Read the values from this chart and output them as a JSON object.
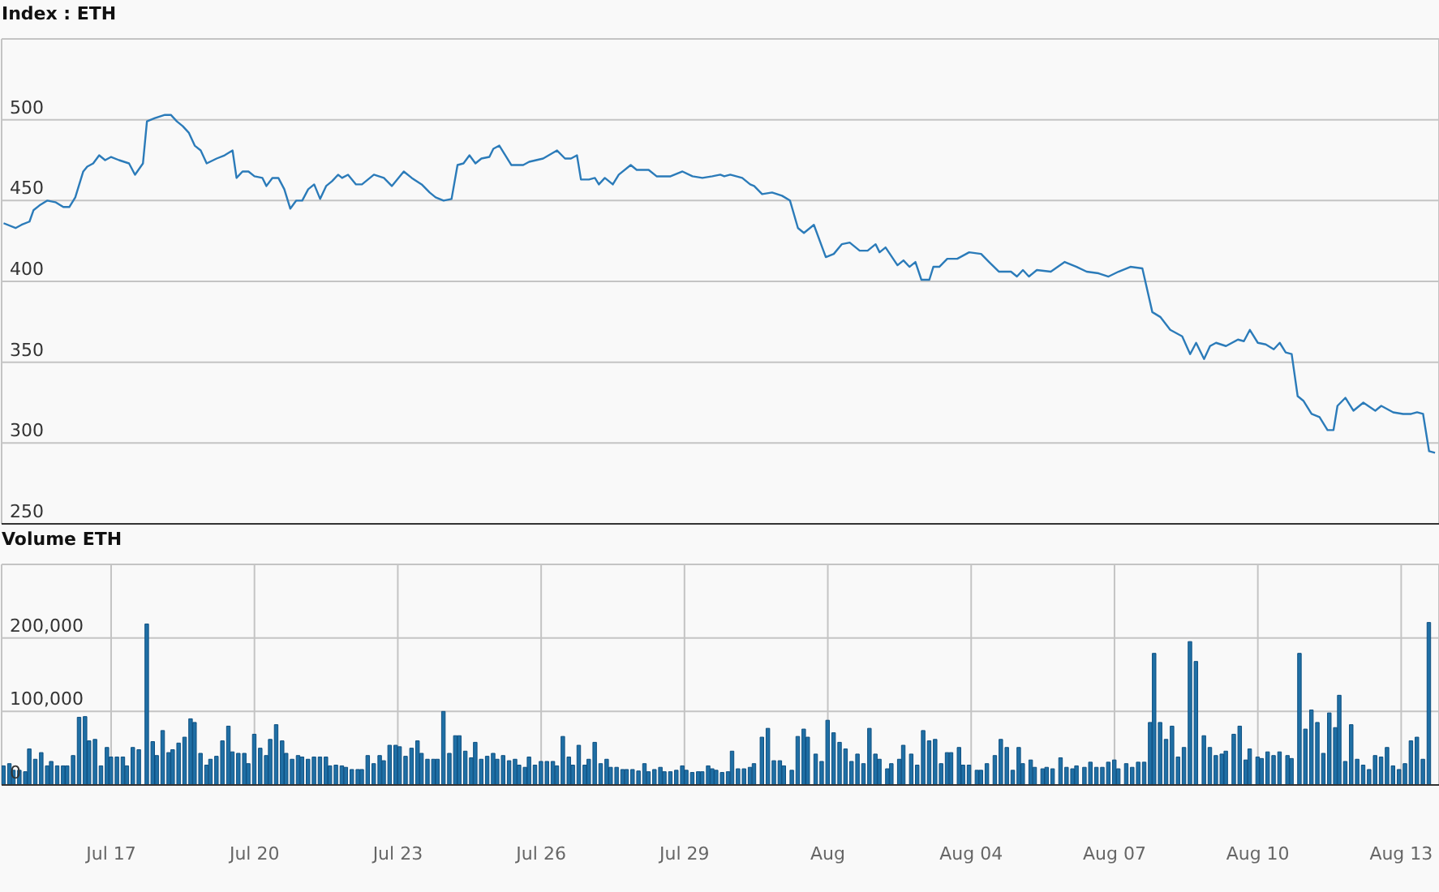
{
  "chart_data": [
    {
      "type": "line",
      "title": "Index : ETH",
      "x": [
        "--07-14T18:00",
        "--07-15T00:00",
        "--07-15T03:00",
        "--07-15T07:00",
        "--07-15T09:00",
        "--07-15T12:00",
        "--07-15T16:00",
        "--07-15T20:00",
        "--07-16T00:00",
        "--07-16T03:00",
        "--07-16T06:00",
        "--07-16T10:00",
        "--07-16T12:00",
        "--07-16T15:00",
        "--07-16T18:00",
        "--07-16T21:00",
        "--07-17T00:00",
        "--07-17T04:00",
        "--07-17T09:00",
        "--07-17T12:00",
        "--07-17T16:00",
        "--07-17T18:00",
        "--07-17T22:00",
        "--07-18T03:00",
        "--07-18T06:00",
        "--07-18T09:00",
        "--07-18T12:00",
        "--07-18T15:00",
        "--07-18T18:00",
        "--07-18T21:00",
        "--07-19T00:00",
        "--07-19T05:00",
        "--07-19T09:00",
        "--07-19T13:00",
        "--07-19T15:00",
        "--07-19T18:00",
        "--07-19T21:00",
        "--07-20T00:00",
        "--07-20T04:00",
        "--07-20T06:00",
        "--07-20T09:00",
        "--07-20T12:00",
        "--07-20T15:00",
        "--07-20T18:00",
        "--07-20T21:00",
        "--07-21T00:00",
        "--07-21T03:00",
        "--07-21T06:00",
        "--07-21T09:00",
        "--07-21T12:00",
        "--07-21T15:00",
        "--07-21T18:00",
        "--07-21T20:00",
        "--07-21T23:00",
        "--07-22T03:00",
        "--07-22T06:00",
        "--07-22T12:00",
        "--07-22T17:00",
        "--07-22T21:00",
        "--07-23T03:00",
        "--07-23T07:00",
        "--07-23T12:00",
        "--07-23T16:00",
        "--07-23T19:00",
        "--07-23T23:00",
        "--07-24T03:00",
        "--07-24T06:00",
        "--07-24T09:00",
        "--07-24T12:00",
        "--07-24T15:00",
        "--07-24T18:00",
        "--07-24T22:00",
        "--07-25T00:00",
        "--07-25T03:00",
        "--07-25T09:00",
        "--07-25T15:00",
        "--07-25T18:00",
        "--07-26T01:00",
        "--07-26T08:00",
        "--07-26T12:00",
        "--07-26T15:00",
        "--07-26T18:00",
        "--07-26T20:00",
        "--07-27T00:00",
        "--07-27T03:00",
        "--07-27T05:00",
        "--07-27T08:00",
        "--07-27T12:00",
        "--07-27T15:00",
        "--07-27T21:00",
        "--07-28T00:00",
        "--07-28T06:00",
        "--07-28T10:00",
        "--07-28T17:00",
        "--07-28T23:00",
        "--07-29T04:00",
        "--07-29T09:00",
        "--07-29T14:00",
        "--07-29T18:00",
        "--07-29T20:00",
        "--07-29T23:00",
        "--07-30T05:00",
        "--07-30T09:00",
        "--07-30T11:00",
        "--07-30T15:00",
        "--07-30T20:00",
        "--07-31T01:00",
        "--07-31T05:00",
        "--07-31T09:00",
        "--07-31T12:00",
        "--07-31T17:00",
        "--07-31T23:00",
        "--08-01T03:00",
        "--08-01T07:00",
        "--08-01T11:00",
        "--08-01T16:00",
        "--08-01T20:00",
        "--08-02T00:00",
        "--08-02T02:00",
        "--08-02T05:00",
        "--08-02T11:00",
        "--08-02T14:00",
        "--08-02T17:00",
        "--08-02T20:00",
        "--08-02T23:00",
        "--08-03T03:00",
        "--08-03T05:00",
        "--08-03T08:00",
        "--08-03T12:00",
        "--08-03T17:00",
        "--08-03T23:00",
        "--08-04T05:00",
        "--08-04T09:00",
        "--08-04T14:00",
        "--08-04T20:00",
        "--08-04T23:00",
        "--08-05T02:00",
        "--08-05T05:00",
        "--08-05T09:00",
        "--08-05T16:00",
        "--08-05T23:00",
        "--08-06T05:00",
        "--08-06T10:00",
        "--08-06T16:00",
        "--08-06T21:00",
        "--08-07T02:00",
        "--08-07T08:00",
        "--08-07T14:00",
        "--08-07T19:00",
        "--08-07T23:00",
        "--08-08T04:00",
        "--08-08T10:00",
        "--08-08T14:00",
        "--08-08T17:00",
        "--08-08T21:00",
        "--08-09T00:00",
        "--08-09T03:00",
        "--08-09T08:00",
        "--08-09T14:00",
        "--08-09T17:00",
        "--08-09T20:00",
        "--08-10T00:00",
        "--08-10T04:00",
        "--08-10T08:00",
        "--08-10T11:00",
        "--08-10T14:00",
        "--08-10T17:00",
        "--08-10T20:00",
        "--08-10T23:00",
        "--08-11T03:00",
        "--08-11T07:00",
        "--08-11T11:00",
        "--08-11T14:00",
        "--08-11T16:00",
        "--08-11T20:00",
        "--08-12T00:00",
        "--08-12T05:00",
        "--08-12T11:00",
        "--08-12T14:00",
        "--08-12T20:00",
        "--08-13T01:00",
        "--08-13T05:00",
        "--08-13T08:00",
        "--08-13T11:00",
        "--08-13T14:00",
        "--08-13T17:00"
      ],
      "series": [
        {
          "color": "#2b7bb9",
          "values": [
            436,
            433,
            435,
            437,
            444,
            447,
            450,
            449,
            446,
            446,
            452,
            468,
            471,
            473,
            478,
            475,
            477,
            475,
            473,
            466,
            473,
            499,
            501,
            503,
            503,
            499,
            496,
            492,
            484,
            481,
            473,
            476,
            478,
            481,
            464,
            468,
            468,
            465,
            464,
            459,
            464,
            464,
            457,
            445,
            450,
            450,
            457,
            460,
            451,
            459,
            462,
            466,
            464,
            466,
            460,
            460,
            466,
            464,
            459,
            468,
            464,
            460,
            455,
            452,
            450,
            451,
            472,
            473,
            478,
            473,
            476,
            477,
            482,
            484,
            472,
            472,
            474,
            476,
            481,
            476,
            476,
            478,
            463,
            463,
            464,
            460,
            464,
            460,
            466,
            472,
            469,
            469,
            465,
            465,
            468,
            465,
            464,
            465,
            466,
            465,
            466,
            464,
            460,
            459,
            454,
            455,
            453,
            450,
            433,
            430,
            435,
            415,
            417,
            423,
            424,
            419,
            419,
            423,
            418,
            421,
            410,
            413,
            409,
            412,
            401,
            401,
            409,
            409,
            414,
            414,
            418,
            417,
            412,
            406,
            406,
            403,
            407,
            403,
            407,
            406,
            412,
            409,
            406,
            405,
            403,
            406,
            409,
            408,
            381,
            378,
            370,
            366,
            355,
            362,
            352,
            360,
            362,
            360,
            364,
            363,
            370,
            362,
            361,
            358,
            362,
            356,
            355,
            329,
            326,
            318,
            316,
            308,
            308,
            323,
            328,
            320,
            325,
            320,
            323,
            319,
            318,
            318,
            319,
            318,
            295,
            294
          ]
        }
      ],
      "xlim": [
        "--07-14T17:00",
        "--08-13T19:00"
      ],
      "xticks": [
        {
          "value": "--07-17",
          "label": null
        },
        {
          "value": "--07-20",
          "label": null
        },
        {
          "value": "--07-23",
          "label": null
        },
        {
          "value": "--07-26",
          "label": null
        },
        {
          "value": "--07-29",
          "label": null
        },
        {
          "value": "--08-01",
          "label": null
        },
        {
          "value": "--08-04",
          "label": null
        },
        {
          "value": "--08-07",
          "label": null
        },
        {
          "value": "--08-10",
          "label": null
        },
        {
          "value": "--08-13",
          "label": null
        }
      ],
      "ylim": [
        250,
        550
      ],
      "yticks": [
        250,
        300,
        350,
        400,
        450,
        500,
        {
          "value": 550,
          "label": null
        }
      ],
      "grid": true,
      "tick_labels": "y"
    },
    {
      "type": "bar",
      "title": "Volume ETH",
      "x": [
        "--07-14T18:00",
        "--07-14T21:00",
        "--07-14T23:00",
        "--07-15T02:00",
        "--07-15T05:00",
        "--07-15T07:00",
        "--07-15T10:00",
        "--07-15T13:00",
        "--07-15T16:00",
        "--07-15T18:00",
        "--07-15T21:00",
        "--07-16T00:00",
        "--07-16T02:00",
        "--07-16T05:00",
        "--07-16T08:00",
        "--07-16T11:00",
        "--07-16T13:00",
        "--07-16T16:00",
        "--07-16T19:00",
        "--07-16T22:00",
        "--07-17T00:00",
        "--07-17T03:00",
        "--07-17T06:00",
        "--07-17T08:00",
        "--07-17T11:00",
        "--07-17T14:00",
        "--07-17T18:00",
        "--07-17T21:00",
        "--07-17T23:00",
        "--07-18T02:00",
        "--07-18T05:00",
        "--07-18T07:00",
        "--07-18T10:00",
        "--07-18T13:00",
        "--07-18T16:00",
        "--07-18T18:00",
        "--07-18T21:00",
        "--07-19T00:00",
        "--07-19T02:00",
        "--07-19T05:00",
        "--07-19T08:00",
        "--07-19T11:00",
        "--07-19T13:00",
        "--07-19T16:00",
        "--07-19T19:00",
        "--07-19T21:00",
        "--07-20T00:00",
        "--07-20T03:00",
        "--07-20T06:00",
        "--07-20T08:00",
        "--07-20T11:00",
        "--07-20T14:00",
        "--07-20T16:00",
        "--07-20T19:00",
        "--07-20T22:00",
        "--07-21T00:00",
        "--07-21T03:00",
        "--07-21T06:00",
        "--07-21T09:00",
        "--07-21T12:00",
        "--07-21T14:00",
        "--07-21T17:00",
        "--07-21T20:00",
        "--07-21T22:00",
        "--07-22T01:00",
        "--07-22T04:00",
        "--07-22T06:00",
        "--07-22T09:00",
        "--07-22T12:00",
        "--07-22T15:00",
        "--07-22T17:00",
        "--07-22T20:00",
        "--07-22T23:00",
        "--07-23T01:00",
        "--07-23T04:00",
        "--07-23T07:00",
        "--07-23T10:00",
        "--07-23T12:00",
        "--07-23T15:00",
        "--07-23T18:00",
        "--07-23T20:00",
        "--07-23T23:00",
        "--07-24T02:00",
        "--07-24T05:00",
        "--07-24T07:00",
        "--07-24T10:00",
        "--07-24T13:00",
        "--07-24T15:00",
        "--07-24T18:00",
        "--07-24T21:00",
        "--07-25T00:00",
        "--07-25T02:00",
        "--07-25T05:00",
        "--07-25T08:00",
        "--07-25T11:00",
        "--07-25T13:00",
        "--07-25T16:00",
        "--07-25T18:00",
        "--07-25T21:00",
        "--07-26T00:00",
        "--07-26T03:00",
        "--07-26T06:00",
        "--07-26T08:00",
        "--07-26T11:00",
        "--07-26T14:00",
        "--07-26T16:00",
        "--07-26T19:00",
        "--07-26T22:00",
        "--07-27T00:00",
        "--07-27T03:00",
        "--07-27T06:00",
        "--07-27T09:00",
        "--07-27T11:00",
        "--07-27T14:00",
        "--07-27T17:00",
        "--07-27T19:00",
        "--07-27T22:00",
        "--07-28T01:00",
        "--07-28T04:00",
        "--07-28T06:00",
        "--07-28T09:00",
        "--07-28T12:00",
        "--07-28T14:00",
        "--07-28T17:00",
        "--07-28T20:00",
        "--07-28T23:00",
        "--07-29T01:00",
        "--07-29T04:00",
        "--07-29T07:00",
        "--07-29T09:00",
        "--07-29T12:00",
        "--07-29T14:00",
        "--07-29T16:00",
        "--07-29T19:00",
        "--07-29T22:00",
        "--07-30T00:00",
        "--07-30T03:00",
        "--07-30T06:00",
        "--07-30T09:00",
        "--07-30T11:00",
        "--07-30T15:00",
        "--07-30T18:00",
        "--07-30T21:00",
        "--07-31T00:00",
        "--07-31T02:00",
        "--07-31T06:00",
        "--07-31T09:00",
        "--07-31T12:00",
        "--07-31T14:00",
        "--07-31T18:00",
        "--07-31T21:00",
        "--08-01T00:00",
        "--08-01T03:00",
        "--08-01T06:00",
        "--08-01T09:00",
        "--08-01T12:00",
        "--08-01T15:00",
        "--08-01T18:00",
        "--08-01T21:00",
        "--08-02T00:00",
        "--08-02T02:00",
        "--08-02T06:00",
        "--08-02T08:00",
        "--08-02T12:00",
        "--08-02T14:00",
        "--08-02T18:00",
        "--08-02T21:00",
        "--08-03T00:00",
        "--08-03T03:00",
        "--08-03T06:00",
        "--08-03T09:00",
        "--08-03T12:00",
        "--08-03T14:00",
        "--08-03T18:00",
        "--08-03T20:00",
        "--08-03T23:00",
        "--08-04T03:00",
        "--08-04T05:00",
        "--08-04T08:00",
        "--08-04T12:00",
        "--08-04T15:00",
        "--08-04T18:00",
        "--08-04T21:00",
        "--08-05T00:00",
        "--08-05T02:00",
        "--08-05T06:00",
        "--08-05T08:00",
        "--08-05T12:00",
        "--08-05T14:00",
        "--08-05T17:00",
        "--08-05T21:00",
        "--08-06T00:00",
        "--08-06T03:00",
        "--08-06T05:00",
        "--08-06T09:00",
        "--08-06T12:00",
        "--08-06T15:00",
        "--08-06T18:00",
        "--08-06T21:00",
        "--08-07T00:00",
        "--08-07T02:00",
        "--08-07T06:00",
        "--08-07T09:00",
        "--08-07T12:00",
        "--08-07T15:00",
        "--08-07T18:00",
        "--08-07T20:00",
        "--08-07T23:00",
        "--08-08T02:00",
        "--08-08T05:00",
        "--08-08T08:00",
        "--08-08T11:00",
        "--08-08T14:00",
        "--08-08T17:00",
        "--08-08T21:00",
        "--08-09T00:00",
        "--08-09T03:00",
        "--08-09T06:00",
        "--08-09T08:00",
        "--08-09T12:00",
        "--08-09T15:00",
        "--08-09T18:00",
        "--08-09T20:00",
        "--08-10T00:00",
        "--08-10T02:00",
        "--08-10T05:00",
        "--08-10T08:00",
        "--08-10T11:00",
        "--08-10T15:00",
        "--08-10T17:00",
        "--08-10T21:00",
        "--08-11T00:00",
        "--08-11T03:00",
        "--08-11T06:00",
        "--08-11T09:00",
        "--08-11T12:00",
        "--08-11T15:00",
        "--08-11T17:00",
        "--08-11T20:00",
        "--08-11T23:00",
        "--08-12T02:00",
        "--08-12T05:00",
        "--08-12T08:00",
        "--08-12T11:00",
        "--08-12T14:00",
        "--08-12T17:00",
        "--08-12T20:00",
        "--08-12T23:00",
        "--08-13T02:00",
        "--08-13T05:00",
        "--08-13T08:00",
        "--08-13T11:00",
        "--08-13T14:00"
      ],
      "values": [
        26000,
        29000,
        20000,
        20000,
        18000,
        49000,
        35000,
        44000,
        26000,
        32000,
        26000,
        26000,
        26000,
        40000,
        92000,
        93000,
        60000,
        62000,
        26000,
        51000,
        38000,
        38000,
        38000,
        26000,
        51000,
        48000,
        219000,
        59000,
        40000,
        74000,
        44000,
        48000,
        57000,
        65000,
        90000,
        85000,
        43000,
        27000,
        35000,
        39000,
        60000,
        80000,
        45000,
        43000,
        43000,
        29000,
        69000,
        50000,
        40000,
        62000,
        82000,
        60000,
        43000,
        35000,
        40000,
        38000,
        35000,
        38000,
        38000,
        38000,
        26000,
        27000,
        26000,
        24000,
        21000,
        21000,
        21000,
        40000,
        29000,
        40000,
        33000,
        54000,
        54000,
        52000,
        39000,
        50000,
        60000,
        43000,
        35000,
        35000,
        35000,
        100000,
        43000,
        67000,
        67000,
        46000,
        37000,
        58000,
        35000,
        39000,
        43000,
        35000,
        40000,
        33000,
        35000,
        27000,
        24000,
        38000,
        27000,
        32000,
        32000,
        32000,
        26000,
        66000,
        38000,
        27000,
        54000,
        27000,
        35000,
        58000,
        29000,
        35000,
        24000,
        24000,
        21000,
        21000,
        21000,
        19000,
        29000,
        18000,
        21000,
        24000,
        18000,
        18000,
        20000,
        26000,
        20000,
        17000,
        18000,
        18000,
        26000,
        22000,
        20000,
        17000,
        18000,
        46000,
        22000,
        22000,
        24000,
        29000,
        65000,
        77000,
        33000,
        33000,
        26000,
        20000,
        66000,
        76000,
        65000,
        42000,
        32000,
        88000,
        71000,
        58000,
        49000,
        32000,
        42000,
        29000,
        77000,
        42000,
        35000,
        22000,
        29000,
        35000,
        54000,
        42000,
        27000,
        74000,
        60000,
        62000,
        29000,
        44000,
        44000,
        51000,
        27000,
        27000,
        20000,
        20000,
        29000,
        40000,
        62000,
        51000,
        20000,
        51000,
        29000,
        34000,
        24000,
        22000,
        24000,
        22000,
        37000,
        24000,
        22000,
        26000,
        24000,
        31000,
        24000,
        24000,
        31000,
        34000,
        22000,
        29000,
        24000,
        31000,
        31000,
        85000,
        179000,
        85000,
        62000,
        80000,
        38000,
        51000,
        195000,
        168000,
        67000,
        51000,
        40000,
        42000,
        46000,
        69000,
        80000,
        34000,
        49000,
        38000,
        36000,
        45000,
        40000,
        45000,
        40000,
        36000,
        179000,
        76000,
        102000,
        85000,
        43000,
        98000,
        78000,
        122000,
        32000,
        82000,
        35000,
        27000,
        21000,
        40000,
        38000,
        51000,
        26000,
        21000,
        29000,
        60000,
        65000,
        35000,
        221000
      ],
      "color": "#1f6fa5",
      "xlim": [
        "--07-14T17:00",
        "--08-13T19:00"
      ],
      "xticks": [
        {
          "value": "--07-17",
          "label": "Jul 17"
        },
        {
          "value": "--07-20",
          "label": "Jul 20"
        },
        {
          "value": "--07-23",
          "label": "Jul 23"
        },
        {
          "value": "--07-26",
          "label": "Jul 26"
        },
        {
          "value": "--07-29",
          "label": "Jul 29"
        },
        {
          "value": "--08-01",
          "label": "Aug"
        },
        {
          "value": "--08-04",
          "label": "Aug 04"
        },
        {
          "value": "--08-07",
          "label": "Aug 07"
        },
        {
          "value": "--08-10",
          "label": "Aug 10"
        },
        {
          "value": "--08-13",
          "label": "Aug 13"
        }
      ],
      "ylim": [
        0,
        300000
      ],
      "yticks": [
        0,
        {
          "value": 100000,
          "label": "100,000"
        },
        {
          "value": 200000,
          "label": "200,000"
        },
        {
          "value": 300000,
          "label": null
        }
      ],
      "grid": true
    }
  ]
}
